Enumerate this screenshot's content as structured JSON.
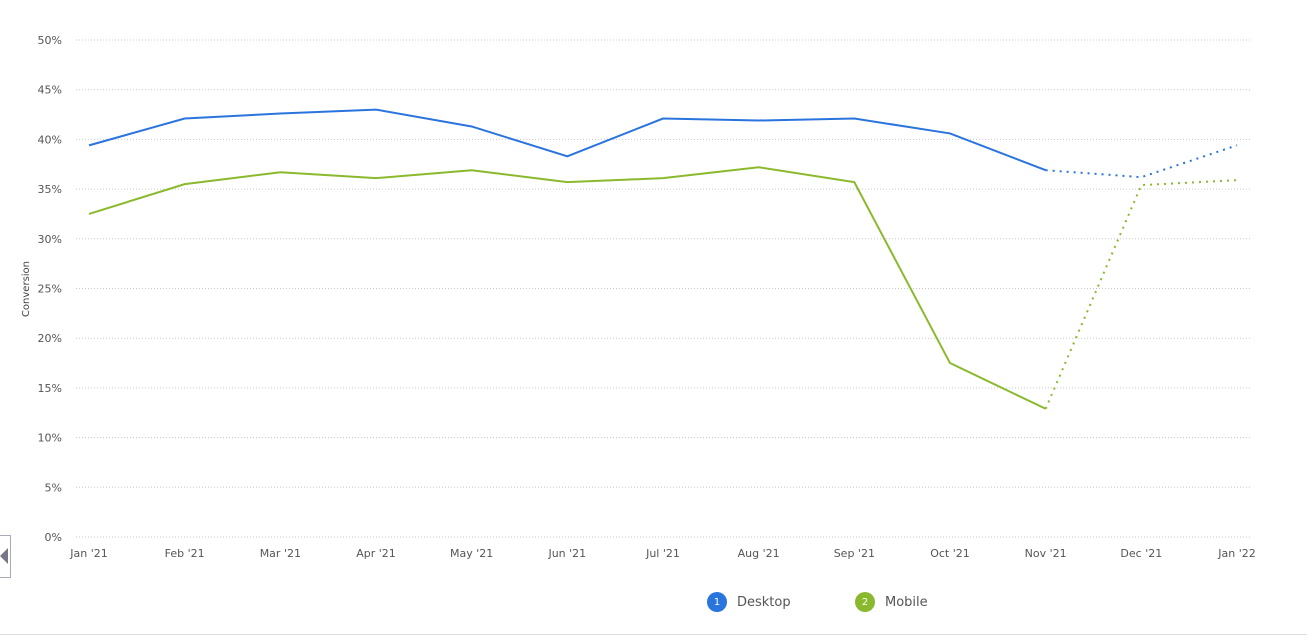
{
  "chart_data": {
    "type": "line",
    "title": "",
    "xlabel": "",
    "ylabel": "Conversion",
    "ylim": [
      0,
      50
    ],
    "yticks": [
      "0%",
      "5%",
      "10%",
      "15%",
      "20%",
      "25%",
      "30%",
      "35%",
      "40%",
      "45%",
      "50%"
    ],
    "categories": [
      "Jan '21",
      "Feb '21",
      "Mar '21",
      "Apr '21",
      "May '21",
      "Jun '21",
      "Jul '21",
      "Aug '21",
      "Sep '21",
      "Oct '21",
      "Nov '21",
      "Dec '21",
      "Jan '22"
    ],
    "dotted_from_index": 10,
    "grid": true,
    "legend_position": "bottom",
    "series": [
      {
        "name": "Desktop",
        "badge": "1",
        "color": "#2a74de",
        "values": [
          39.4,
          42.1,
          42.6,
          43.0,
          41.3,
          38.3,
          42.1,
          41.9,
          42.1,
          40.6,
          36.9,
          36.2,
          39.4
        ]
      },
      {
        "name": "Mobile",
        "badge": "2",
        "color": "#8ab92d",
        "values": [
          32.5,
          35.5,
          36.7,
          36.1,
          36.9,
          35.7,
          36.1,
          37.2,
          35.7,
          17.5,
          12.9,
          35.4,
          35.9
        ]
      }
    ]
  }
}
